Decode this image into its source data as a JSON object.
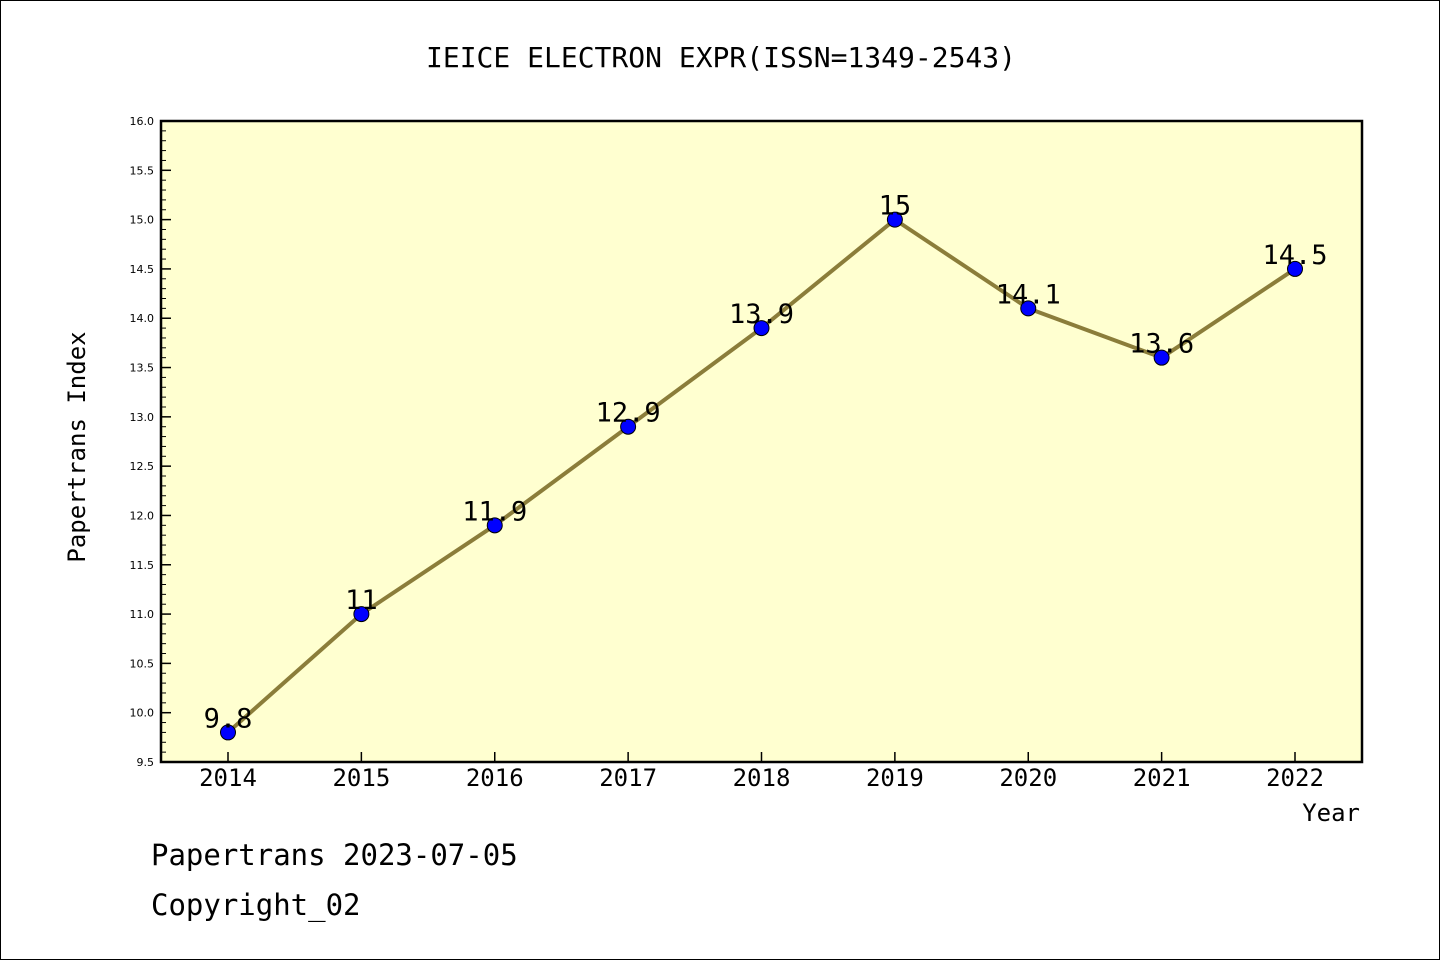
{
  "footer": {
    "source_line": "Papertrans 2023-07-05",
    "copyright_line": "Copyright_02"
  },
  "colors": {
    "plot_background": "#ffffd0",
    "line": "#8b7d3a",
    "marker": "#0000ff",
    "axis": "#000000"
  },
  "chart_data": {
    "type": "line",
    "title": "IEICE ELECTRON EXPR(ISSN=1349-2543)",
    "xlabel": "Year",
    "ylabel": "Papertrans Index",
    "categories": [
      "2014",
      "2015",
      "2016",
      "2017",
      "2018",
      "2019",
      "2020",
      "2021",
      "2022"
    ],
    "series": [
      {
        "values": [
          9.8,
          11,
          11.9,
          12.9,
          13.9,
          15,
          14.1,
          13.6,
          14.5
        ],
        "labels": [
          "9.8",
          "11",
          "11.9",
          "12.9",
          "13.9",
          "15",
          "14.1",
          "13.6",
          "14.5"
        ]
      }
    ],
    "ylim": [
      9.5,
      16.0
    ],
    "yticks": [
      "9.5",
      "10.0",
      "10.5",
      "11.0",
      "11.5",
      "12.0",
      "12.5",
      "13.0",
      "13.5",
      "14.0",
      "14.5",
      "15.0",
      "15.5",
      "16.0"
    ],
    "grid": false,
    "legend": "none"
  }
}
